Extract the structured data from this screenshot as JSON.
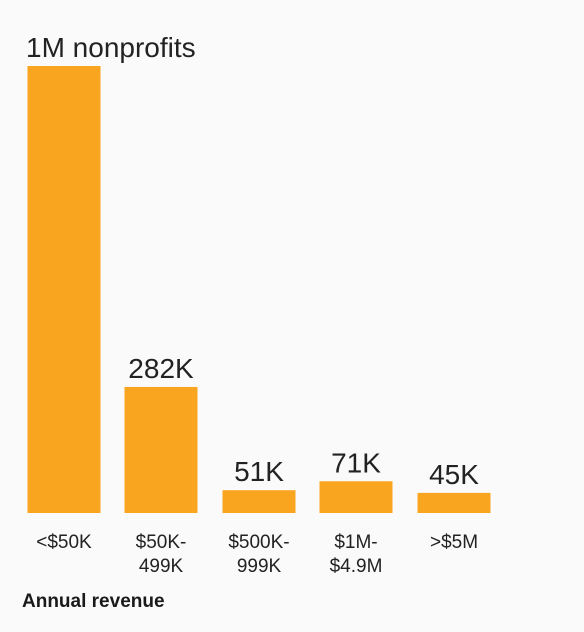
{
  "colors": {
    "bar": "#f9a51f",
    "text": "#222222",
    "background": "#fafafa"
  },
  "chart_data": {
    "type": "bar",
    "categories": [
      "<$50K",
      "$50K-499K",
      "$500K-999K",
      "$1M-$4.9M",
      ">$5M"
    ],
    "category_lines": [
      [
        "<$50K"
      ],
      [
        "$50K-",
        "499K"
      ],
      [
        "$500K-",
        "999K"
      ],
      [
        "$1M-",
        "$4.9M"
      ],
      [
        ">$5M"
      ]
    ],
    "values": [
      1000000,
      282000,
      51000,
      71000,
      45000
    ],
    "data_labels": [
      "1M nonprofits",
      "282K",
      "51K",
      "71K",
      "45K"
    ],
    "xlabel": "Annual revenue",
    "ylabel": "",
    "ylim": [
      0,
      1000000
    ],
    "grid": false,
    "legend": "none"
  }
}
